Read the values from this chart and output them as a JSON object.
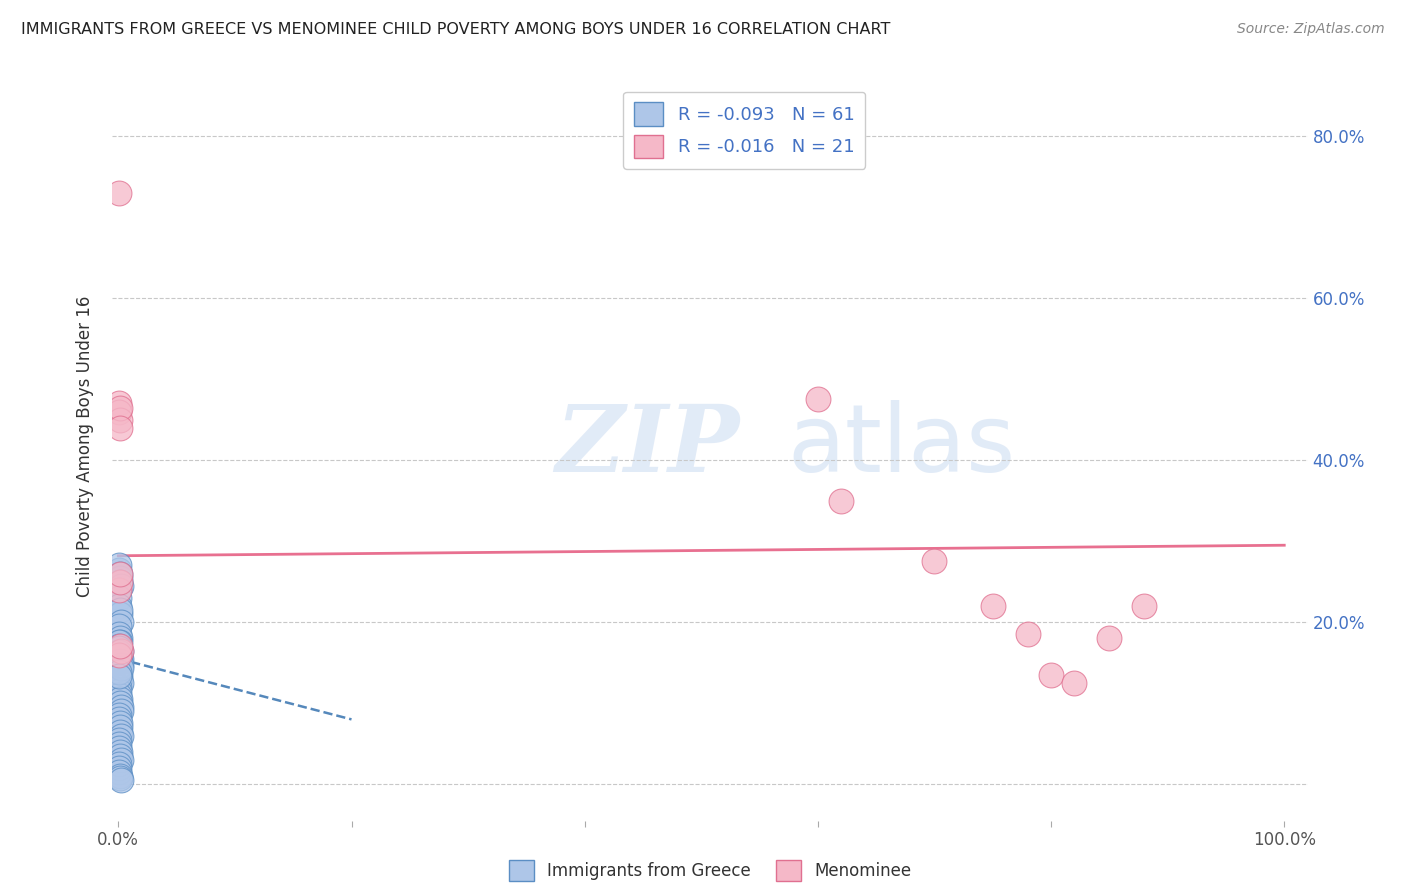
{
  "title": "IMMIGRANTS FROM GREECE VS MENOMINEE CHILD POVERTY AMONG BOYS UNDER 16 CORRELATION CHART",
  "source": "Source: ZipAtlas.com",
  "ylabel": "Child Poverty Among Boys Under 16",
  "ytick_values": [
    0.0,
    0.2,
    0.4,
    0.6,
    0.8
  ],
  "xmin": -0.005,
  "xmax": 1.02,
  "ymin": -0.045,
  "ymax": 0.88,
  "legend_r1": "R = -0.093",
  "legend_n1": "N = 61",
  "legend_r2": "R = -0.016",
  "legend_n2": "N = 21",
  "color_blue_fill": "#aec6e8",
  "color_blue_edge": "#5b8ec4",
  "color_pink_fill": "#f5b8c8",
  "color_pink_edge": "#e07090",
  "color_blue_accent": "#4472c4",
  "color_grid": "#c8c8c8",
  "color_pink_trend": "#e87090",
  "color_blue_trend": "#5588bb",
  "blue_scatter_x": [
    0.0008,
    0.001,
    0.0012,
    0.0015,
    0.0018,
    0.002,
    0.0005,
    0.0008,
    0.001,
    0.0014,
    0.0018,
    0.0022,
    0.0006,
    0.0009,
    0.0011,
    0.0016,
    0.002,
    0.0025,
    0.0004,
    0.0007,
    0.001,
    0.0013,
    0.0017,
    0.0021,
    0.0003,
    0.0006,
    0.0009,
    0.0012,
    0.0016,
    0.0019,
    0.0023,
    0.0005,
    0.0008,
    0.0011,
    0.0014,
    0.0018,
    0.0022,
    0.0004,
    0.0007,
    0.001,
    0.0013,
    0.0017,
    0.0021,
    0.0003,
    0.0006,
    0.0009,
    0.0012,
    0.0016,
    0.0019,
    0.0004,
    0.0007,
    0.001,
    0.0003,
    0.0005,
    0.0008,
    0.0011,
    0.0015,
    0.0019,
    0.0022,
    0.0006,
    0.0009
  ],
  "blue_scatter_y": [
    0.265,
    0.27,
    0.255,
    0.26,
    0.25,
    0.245,
    0.24,
    0.23,
    0.22,
    0.21,
    0.215,
    0.2,
    0.195,
    0.185,
    0.18,
    0.175,
    0.165,
    0.155,
    0.15,
    0.145,
    0.14,
    0.135,
    0.13,
    0.125,
    0.12,
    0.115,
    0.11,
    0.105,
    0.1,
    0.095,
    0.09,
    0.085,
    0.08,
    0.075,
    0.07,
    0.065,
    0.06,
    0.055,
    0.05,
    0.045,
    0.04,
    0.035,
    0.03,
    0.025,
    0.02,
    0.015,
    0.01,
    0.008,
    0.005,
    0.175,
    0.16,
    0.155,
    0.17,
    0.168,
    0.163,
    0.158,
    0.152,
    0.147,
    0.143,
    0.138,
    0.133
  ],
  "pink_scatter_x_left": [
    0.0005,
    0.0008,
    0.001,
    0.0012,
    0.0015,
    0.0018,
    0.0008,
    0.0012,
    0.0016,
    0.002,
    0.001,
    0.0014
  ],
  "pink_scatter_y_left": [
    0.73,
    0.47,
    0.46,
    0.45,
    0.465,
    0.44,
    0.24,
    0.25,
    0.26,
    0.165,
    0.16,
    0.17
  ],
  "pink_scatter_x_right": [
    0.6,
    0.62,
    0.7,
    0.75,
    0.78,
    0.8,
    0.82,
    0.85,
    0.88
  ],
  "pink_scatter_y_right": [
    0.475,
    0.35,
    0.275,
    0.22,
    0.185,
    0.135,
    0.125,
    0.18,
    0.22
  ],
  "blue_trend_x": [
    0.0,
    0.2
  ],
  "blue_trend_y": [
    0.155,
    0.08
  ],
  "pink_trend_x": [
    0.0,
    1.0
  ],
  "pink_trend_y": [
    0.282,
    0.295
  ]
}
